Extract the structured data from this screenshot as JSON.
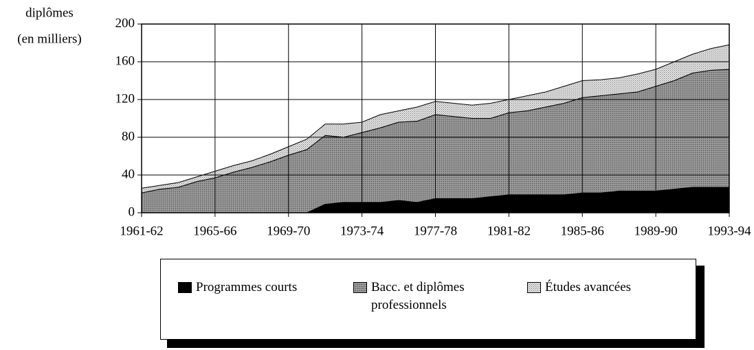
{
  "chart_data": {
    "type": "stacked_area",
    "y_label": [
      "diplômes",
      "(en milliers)"
    ],
    "categories": [
      "1961-62",
      null,
      null,
      null,
      "1965-66",
      null,
      null,
      null,
      "1969-70",
      null,
      null,
      null,
      "1973-74",
      null,
      null,
      null,
      "1977-78",
      null,
      null,
      null,
      "1981-82",
      null,
      null,
      null,
      "1985-86",
      null,
      null,
      null,
      "1989-90",
      null,
      null,
      null,
      "1993-94"
    ],
    "series": [
      {
        "name": "Programmes courts",
        "color": "#000000",
        "values": [
          0,
          0,
          0,
          0,
          0,
          0,
          0,
          0,
          0,
          0,
          9,
          11,
          11,
          11,
          13,
          11,
          15,
          15,
          15,
          17,
          19,
          19,
          19,
          19,
          21,
          21,
          23,
          23,
          23,
          25,
          27,
          27,
          27
        ]
      },
      {
        "name": "Bacc. et diplômes professionnels",
        "color": "#8c8c8c",
        "values": [
          21,
          25,
          27,
          33,
          37,
          43,
          48,
          54,
          61,
          67,
          73,
          69,
          74,
          79,
          83,
          86,
          89,
          87,
          85,
          83,
          87,
          89,
          93,
          97,
          101,
          103,
          103,
          105,
          111,
          115,
          121,
          124,
          125
        ]
      },
      {
        "name": "Études avancées",
        "color": "#e6e6e6",
        "values": [
          5,
          4,
          5,
          5,
          7,
          7,
          7,
          8,
          9,
          11,
          12,
          14,
          11,
          14,
          12,
          15,
          14,
          14,
          14,
          16,
          14,
          16,
          16,
          18,
          18,
          17,
          17,
          19,
          18,
          20,
          20,
          23,
          26
        ]
      }
    ],
    "ylim": [
      0,
      200
    ],
    "yticks": [
      0,
      40,
      80,
      120,
      160,
      200
    ],
    "grid": true
  }
}
